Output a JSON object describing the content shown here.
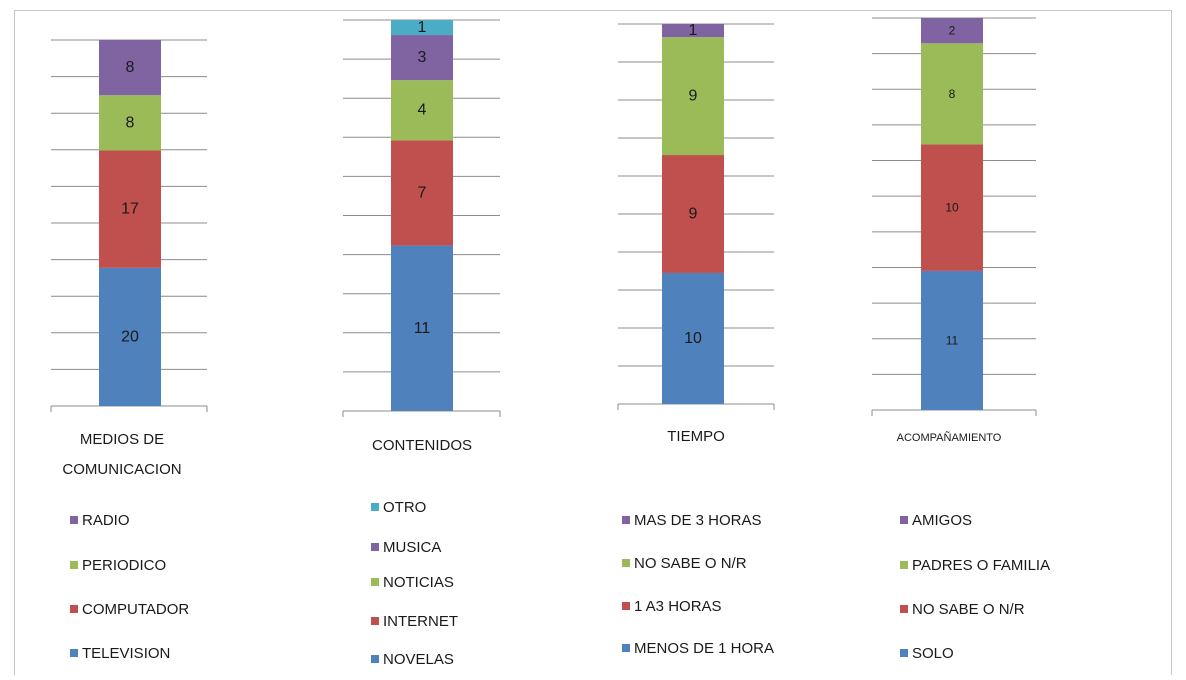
{
  "chart_data": [
    {
      "type": "bar",
      "stacked": true,
      "xlabel": "MEDIOS DE COMUNICACION",
      "total": 53,
      "series": [
        {
          "name": "TELEVISION",
          "value": 20,
          "color": "#4F81BD"
        },
        {
          "name": "COMPUTADOR",
          "value": 17,
          "color": "#C0504D"
        },
        {
          "name": "PERIODICO",
          "value": 8,
          "color": "#9BBB59"
        },
        {
          "name": "RADIO",
          "value": 8,
          "color": "#8064A2"
        }
      ]
    },
    {
      "type": "bar",
      "stacked": true,
      "xlabel": "CONTENIDOS",
      "total": 26,
      "series": [
        {
          "name": "NOVELAS",
          "value": 11,
          "color": "#4F81BD"
        },
        {
          "name": "INTERNET",
          "value": 7,
          "color": "#C0504D"
        },
        {
          "name": "NOTICIAS",
          "value": 4,
          "color": "#9BBB59"
        },
        {
          "name": "MUSICA",
          "value": 3,
          "color": "#8064A2"
        },
        {
          "name": "OTRO",
          "value": 1,
          "color": "#4BACC6"
        }
      ]
    },
    {
      "type": "bar",
      "stacked": true,
      "xlabel": "TIEMPO",
      "total": 29,
      "series": [
        {
          "name": "MENOS DE 1 HORA",
          "value": 10,
          "color": "#4F81BD"
        },
        {
          "name": "1 A3 HORAS",
          "value": 9,
          "color": "#C0504D"
        },
        {
          "name": "NO SABE O N/R",
          "value": 9,
          "color": "#9BBB59"
        },
        {
          "name": "MAS DE 3 HORAS",
          "value": 1,
          "color": "#8064A2"
        }
      ]
    },
    {
      "type": "bar",
      "stacked": true,
      "xlabel": "ACOMPAÑAMIENTO",
      "total": 31,
      "series": [
        {
          "name": "SOLO",
          "value": 11,
          "color": "#4F81BD"
        },
        {
          "name": "NO SABE O N/R",
          "value": 10,
          "color": "#C0504D"
        },
        {
          "name": "PADRES O FAMILIA",
          "value": 8,
          "color": "#9BBB59"
        },
        {
          "name": "AMIGOS",
          "value": 2,
          "color": "#8064A2"
        }
      ]
    }
  ]
}
